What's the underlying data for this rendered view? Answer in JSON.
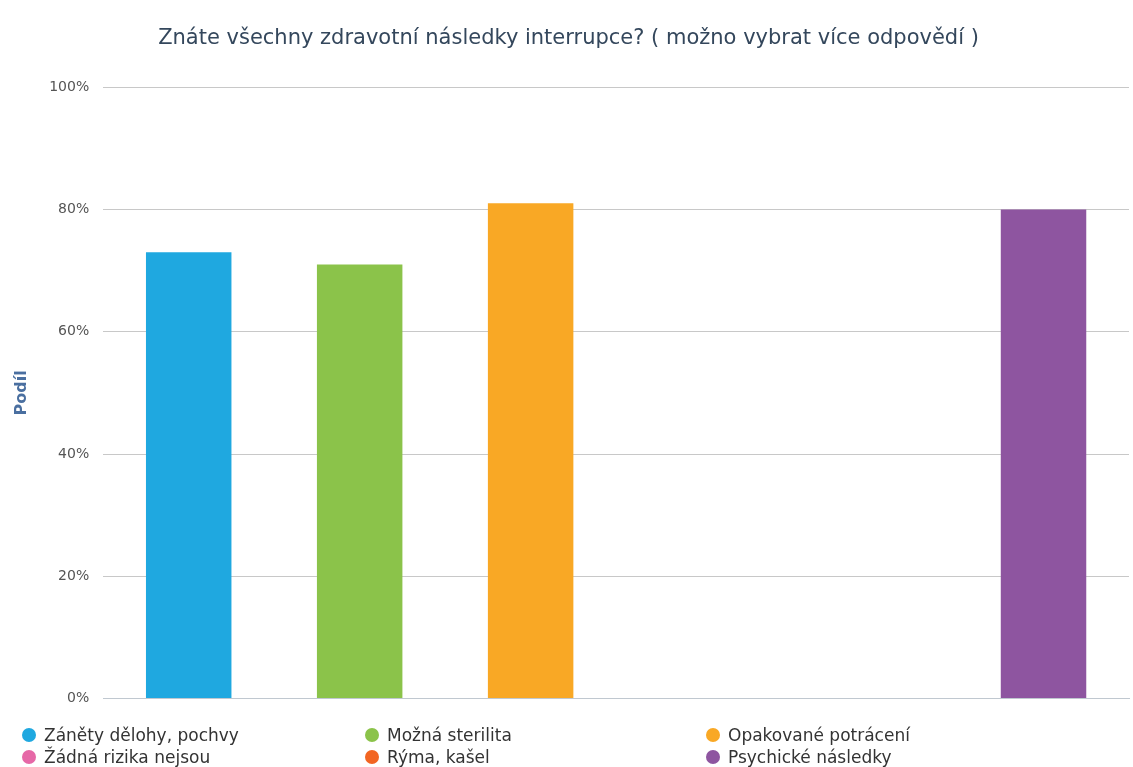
{
  "chart_data": {
    "type": "bar",
    "title": "Znáte všechny zdravotní následky interrupce? ( možno vybrat více odpovědí )",
    "ylabel": "Podíl",
    "categories": [
      null,
      null,
      null,
      null,
      null,
      null
    ],
    "series": [
      {
        "name": "Záněty dělohy, pochvy",
        "color": "#1fa8e0",
        "values": [
          73,
          null,
          null,
          null,
          null,
          null
        ]
      },
      {
        "name": "Možná sterilita",
        "color": "#8bc34a",
        "values": [
          null,
          71,
          null,
          null,
          null,
          null
        ]
      },
      {
        "name": "Opakované potrácení",
        "color": "#f9a825",
        "values": [
          null,
          null,
          81,
          null,
          null,
          null
        ]
      },
      {
        "name": "Žádná rizika nejsou",
        "color": "#e668a7",
        "values": [
          null,
          null,
          null,
          0,
          null,
          null
        ]
      },
      {
        "name": "Rýma, kašel",
        "color": "#f26522",
        "values": [
          null,
          null,
          null,
          null,
          0,
          null
        ]
      },
      {
        "name": "Psychické následky",
        "color": "#8e55a0",
        "values": [
          null,
          null,
          null,
          null,
          null,
          80
        ]
      }
    ],
    "ylim": [
      0,
      100
    ],
    "yticks": [
      {
        "value": 0,
        "label": "0%"
      },
      {
        "value": 20,
        "label": "20%"
      },
      {
        "value": 40,
        "label": "40%"
      },
      {
        "value": 60,
        "label": "60%"
      },
      {
        "value": 80,
        "label": "80%"
      },
      {
        "value": 100,
        "label": "100%"
      }
    ],
    "grid": "y",
    "legend": "bottom"
  }
}
